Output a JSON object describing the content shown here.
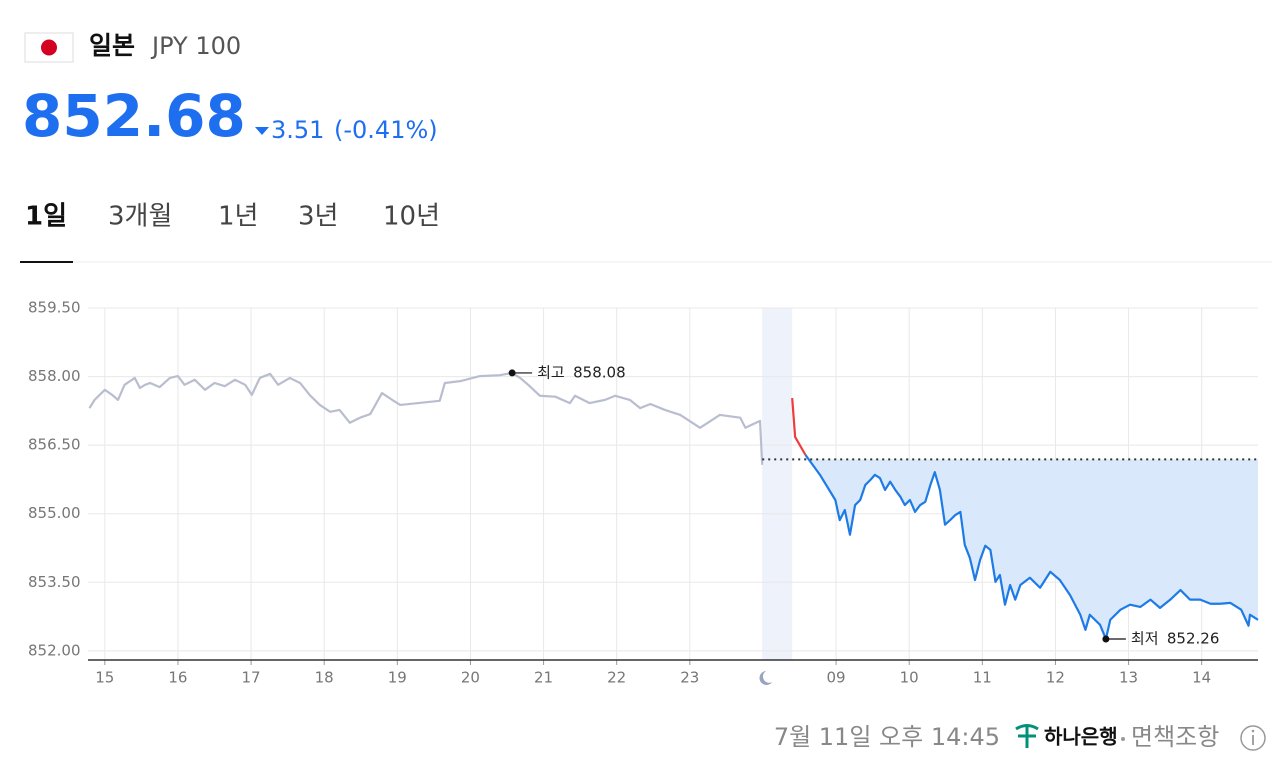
{
  "header": {
    "country": "일본",
    "currency": "JPY 100",
    "price": 852.68,
    "change": 3.51,
    "change_pct": "(-0.41%)"
  },
  "tabs": [
    "1일",
    "3개월",
    "1년",
    "3년",
    "10년"
  ],
  "chart_data": {
    "type": "line",
    "xlim": [
      -0.23,
      15.77
    ],
    "ylim": [
      851.8,
      859.5
    ],
    "yticks": [
      {
        "value": 852,
        "label": "852.00"
      },
      {
        "value": 853.5,
        "label": "853.50"
      },
      {
        "value": 855,
        "label": "855.00"
      },
      {
        "value": 856.5,
        "label": "856.50"
      },
      {
        "value": 858,
        "label": "858.00"
      },
      {
        "value": 859.5,
        "label": "859.50"
      }
    ],
    "xticks": [
      {
        "value": 0,
        "label": "15"
      },
      {
        "value": 1,
        "label": "16"
      },
      {
        "value": 2,
        "label": "17"
      },
      {
        "value": 3,
        "label": "18"
      },
      {
        "value": 4,
        "label": "19"
      },
      {
        "value": 5,
        "label": "20"
      },
      {
        "value": 6,
        "label": "21"
      },
      {
        "value": 7,
        "label": "22"
      },
      {
        "value": 8,
        "label": "23"
      },
      {
        "value": 10,
        "label": "09"
      },
      {
        "value": 11,
        "label": "10"
      },
      {
        "value": 12,
        "label": "11"
      },
      {
        "value": 13,
        "label": "12"
      },
      {
        "value": 14,
        "label": "13"
      },
      {
        "value": 15,
        "label": "14"
      }
    ],
    "grid": true,
    "reference_line": 856.19,
    "series": [
      {
        "color": "#b9bdd0",
        "x": [
          -0.21,
          -0.14,
          0,
          0.1,
          0.18,
          0.27,
          0.41,
          0.48,
          0.55,
          0.62,
          0.75,
          0.89,
          1.0,
          1.09,
          1.23,
          1.37,
          1.5,
          1.64,
          1.78,
          1.92,
          2.01,
          2.12,
          2.26,
          2.37,
          2.53,
          2.67,
          2.8,
          2.94,
          3.08,
          3.21,
          3.35,
          3.49,
          3.63,
          3.79,
          3.93,
          4.04,
          4.58,
          4.65,
          4.86,
          5.13,
          5.4,
          5.57,
          5.68,
          5.79,
          5.95,
          6.16,
          6.36,
          6.43,
          6.63,
          6.84,
          6.98,
          7.18,
          7.32,
          7.46,
          7.66,
          7.87,
          8.14,
          8.41,
          8.69,
          8.76,
          8.96,
          8.99
        ],
        "values": [
          857.31,
          857.49,
          857.71,
          857.6,
          857.49,
          857.82,
          857.97,
          857.75,
          857.82,
          857.86,
          857.77,
          857.97,
          858.01,
          857.82,
          857.93,
          857.71,
          857.86,
          857.79,
          857.93,
          857.82,
          857.6,
          857.97,
          858.06,
          857.82,
          857.97,
          857.86,
          857.6,
          857.38,
          857.23,
          857.27,
          856.99,
          857.1,
          857.18,
          857.64,
          857.49,
          857.38,
          857.47,
          857.86,
          857.9,
          858.01,
          858.03,
          858.08,
          857.97,
          857.82,
          857.58,
          857.56,
          857.42,
          857.58,
          857.42,
          857.49,
          857.58,
          857.49,
          857.31,
          857.4,
          857.27,
          857.16,
          856.88,
          857.16,
          857.1,
          856.88,
          857.03,
          856.07
        ]
      },
      {
        "color": "#f03c3c",
        "x": [
          9.4,
          9.44,
          9.58
        ],
        "values": [
          857.53,
          856.68,
          856.29
        ]
      },
      {
        "color": "#1e7be6",
        "fill": "#d9e9fb",
        "x": [
          9.58,
          9.78,
          9.99,
          10.05,
          10.12,
          10.19,
          10.26,
          10.33,
          10.4,
          10.47,
          10.53,
          10.6,
          10.67,
          10.74,
          10.81,
          10.88,
          10.94,
          11.01,
          11.08,
          11.15,
          11.22,
          11.29,
          11.35,
          11.42,
          11.49,
          11.56,
          11.63,
          11.7,
          11.76,
          11.83,
          11.9,
          11.97,
          12.04,
          12.11,
          12.18,
          12.24,
          12.31,
          12.38,
          12.45,
          12.52,
          12.65,
          12.79,
          12.93,
          13.06,
          13.2,
          13.34,
          13.41,
          13.47,
          13.61,
          13.69,
          13.75,
          13.89,
          14.02,
          14.16,
          14.3,
          14.43,
          14.57,
          14.71,
          14.84,
          14.98,
          15.12,
          15.25,
          15.39,
          15.54,
          15.64,
          15.66,
          15.77
        ],
        "values": [
          856.29,
          855.85,
          855.3,
          854.86,
          855.08,
          854.54,
          855.19,
          855.3,
          855.63,
          855.74,
          855.85,
          855.78,
          855.52,
          855.7,
          855.52,
          855.37,
          855.19,
          855.3,
          855.04,
          855.19,
          855.26,
          855.63,
          855.91,
          855.52,
          854.76,
          854.86,
          854.97,
          855.04,
          854.32,
          854.03,
          853.55,
          853.99,
          854.3,
          854.21,
          853.51,
          853.66,
          853.01,
          853.44,
          853.12,
          853.44,
          853.6,
          853.38,
          853.73,
          853.55,
          853.22,
          852.79,
          852.46,
          852.79,
          852.57,
          852.26,
          852.68,
          852.9,
          853.01,
          852.96,
          853.12,
          852.94,
          853.12,
          853.33,
          853.12,
          853.12,
          853.03,
          853.03,
          853.05,
          852.9,
          852.55,
          852.79,
          852.68
        ]
      }
    ],
    "annotations": [
      {
        "label": "최고",
        "x": 5.57,
        "value": 858.08
      },
      {
        "label": "최저",
        "x": 13.69,
        "value": 852.26
      }
    ]
  },
  "footer": {
    "timestamp": "7월 11일 오후 14:45",
    "provider": "하나은행",
    "disclaimer": "면책조항"
  }
}
